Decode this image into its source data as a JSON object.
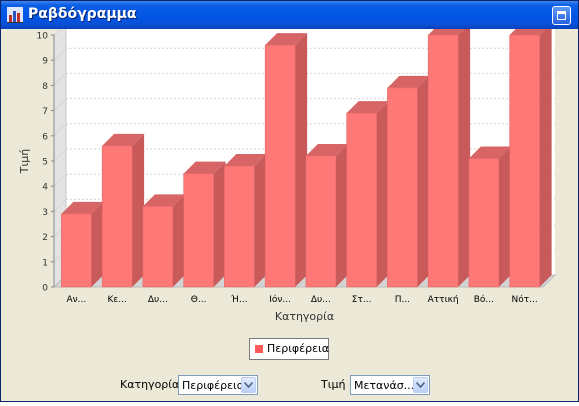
{
  "window": {
    "title": "Ραβδόγραμμα",
    "icon": "bar-chart-icon"
  },
  "colors": {
    "bar_front": "#ff7878",
    "bar_side": "#c85a5a",
    "bar_top": "#d86565",
    "titlebar": "#0055e5"
  },
  "chart_data": {
    "type": "bar",
    "xlabel": "Κατηγορία",
    "ylabel": "Τιμή",
    "ylim": [
      0,
      10
    ],
    "yticks": [
      "0",
      "1",
      "2",
      "3",
      "4",
      "5",
      "6",
      "7",
      "8",
      "9",
      "10"
    ],
    "categories": [
      "Αν...",
      "Κε...",
      "Δυ...",
      "Θ...",
      "Ή...",
      "Ιόν...",
      "Δυ...",
      "Στ...",
      "Π...",
      "Αττική",
      "Βό...",
      "Νότ..."
    ],
    "series": [
      {
        "name": "Περιφέρεια",
        "values": [
          2.9,
          5.6,
          3.2,
          4.5,
          4.8,
          9.6,
          5.2,
          6.9,
          7.9,
          10.0,
          5.1,
          10.0
        ]
      }
    ],
    "grid": true,
    "legend_position": "bottom"
  },
  "controls": {
    "category_label": "Κατηγορία",
    "category_value": "Περιφέρεια",
    "value_label": "Τιμή",
    "value_value": "Μετανάσ..."
  }
}
